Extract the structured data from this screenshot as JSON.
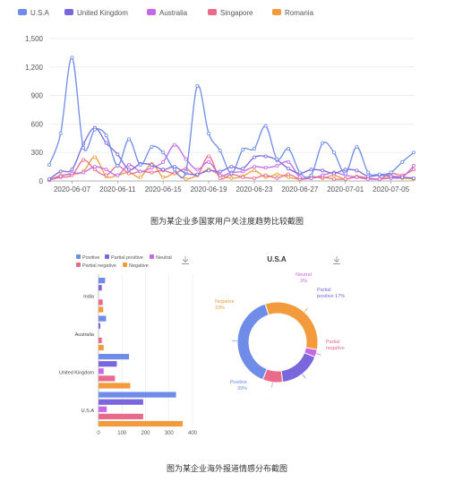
{
  "caption_top": "图为某企业多国家用户关注度趋势比较截图",
  "caption_bottom": "图为某企业海外报道情感分布截图",
  "colors": {
    "U.S.A": "#6e8ce8",
    "United Kingdom": "#7a66dd",
    "Australia": "#c667e6",
    "Singapore": "#ea6a8c",
    "Romania": "#f39b3c",
    "Positive": "#6e8ce8",
    "Partial positive": "#7a66dd",
    "Neutral": "#c667e6",
    "Partial negative": "#ea6a8c",
    "Negative": "#f39b3c",
    "grid": "#e6e6e6",
    "axis": "#999999",
    "download_icon": "#9a9a9a"
  },
  "chart_data": [
    {
      "type": "line",
      "title": "",
      "legend_position": "top-left",
      "legend": [
        "U.S.A",
        "United Kingdom",
        "Australia",
        "Singapore",
        "Romania"
      ],
      "x_ticks": [
        "2020-06-07",
        "2020-06-11",
        "2020-06-15",
        "2020-06-19",
        "2020-06-23",
        "2020-06-27",
        "2020-07-01",
        "2020-07-05"
      ],
      "x_start": "2020-06-05",
      "x_end": "2020-07-07",
      "y_ticks": [
        "0",
        "300",
        "600",
        "900",
        "1,200",
        "1,500"
      ],
      "ylim": [
        0,
        1500
      ],
      "grid": true,
      "series": [
        {
          "name": "U.S.A",
          "points": [
            [
              "2020-06-05",
              170
            ],
            [
              "2020-06-06",
              500
            ],
            [
              "2020-06-07",
              1300
            ],
            [
              "2020-06-08",
              350
            ],
            [
              "2020-06-09",
              540
            ],
            [
              "2020-06-10",
              480
            ],
            [
              "2020-06-11",
              160
            ],
            [
              "2020-06-12",
              440
            ],
            [
              "2020-06-13",
              170
            ],
            [
              "2020-06-14",
              360
            ],
            [
              "2020-06-15",
              300
            ],
            [
              "2020-06-16",
              120
            ],
            [
              "2020-06-17",
              100
            ],
            [
              "2020-06-18",
              1000
            ],
            [
              "2020-06-19",
              500
            ],
            [
              "2020-06-20",
              320
            ],
            [
              "2020-06-21",
              80
            ],
            [
              "2020-06-22",
              330
            ],
            [
              "2020-06-23",
              340
            ],
            [
              "2020-06-24",
              580
            ],
            [
              "2020-06-25",
              230
            ],
            [
              "2020-06-26",
              340
            ],
            [
              "2020-06-27",
              90
            ],
            [
              "2020-06-28",
              60
            ],
            [
              "2020-06-29",
              400
            ],
            [
              "2020-06-30",
              300
            ],
            [
              "2020-07-01",
              80
            ],
            [
              "2020-07-02",
              360
            ],
            [
              "2020-07-03",
              90
            ],
            [
              "2020-07-04",
              70
            ],
            [
              "2020-07-05",
              90
            ],
            [
              "2020-07-06",
              200
            ],
            [
              "2020-07-07",
              300
            ]
          ]
        },
        {
          "name": "United Kingdom",
          "points": [
            [
              "2020-06-05",
              20
            ],
            [
              "2020-06-06",
              100
            ],
            [
              "2020-06-07",
              120
            ],
            [
              "2020-06-08",
              390
            ],
            [
              "2020-06-09",
              560
            ],
            [
              "2020-06-10",
              400
            ],
            [
              "2020-06-11",
              280
            ],
            [
              "2020-06-12",
              120
            ],
            [
              "2020-06-13",
              180
            ],
            [
              "2020-06-14",
              170
            ],
            [
              "2020-06-15",
              120
            ],
            [
              "2020-06-16",
              150
            ],
            [
              "2020-06-17",
              80
            ],
            [
              "2020-06-18",
              70
            ],
            [
              "2020-06-19",
              110
            ],
            [
              "2020-06-20",
              100
            ],
            [
              "2020-06-21",
              150
            ],
            [
              "2020-06-22",
              130
            ],
            [
              "2020-06-23",
              250
            ],
            [
              "2020-06-24",
              260
            ],
            [
              "2020-06-25",
              220
            ],
            [
              "2020-06-26",
              130
            ],
            [
              "2020-06-27",
              80
            ],
            [
              "2020-06-28",
              120
            ],
            [
              "2020-06-29",
              110
            ],
            [
              "2020-06-30",
              80
            ],
            [
              "2020-07-01",
              120
            ],
            [
              "2020-07-02",
              110
            ],
            [
              "2020-07-03",
              50
            ],
            [
              "2020-07-04",
              60
            ],
            [
              "2020-07-05",
              50
            ],
            [
              "2020-07-06",
              40
            ],
            [
              "2020-07-07",
              30
            ]
          ]
        },
        {
          "name": "Australia",
          "points": [
            [
              "2020-06-05",
              10
            ],
            [
              "2020-06-06",
              50
            ],
            [
              "2020-06-07",
              80
            ],
            [
              "2020-06-08",
              90
            ],
            [
              "2020-06-09",
              150
            ],
            [
              "2020-06-10",
              120
            ],
            [
              "2020-06-11",
              60
            ],
            [
              "2020-06-12",
              170
            ],
            [
              "2020-06-13",
              100
            ],
            [
              "2020-06-14",
              140
            ],
            [
              "2020-06-15",
              200
            ],
            [
              "2020-06-16",
              380
            ],
            [
              "2020-06-17",
              230
            ],
            [
              "2020-06-18",
              120
            ],
            [
              "2020-06-19",
              200
            ],
            [
              "2020-06-20",
              60
            ],
            [
              "2020-06-21",
              90
            ],
            [
              "2020-06-22",
              100
            ],
            [
              "2020-06-23",
              150
            ],
            [
              "2020-06-24",
              140
            ],
            [
              "2020-06-25",
              160
            ],
            [
              "2020-06-26",
              200
            ],
            [
              "2020-06-27",
              40
            ],
            [
              "2020-06-28",
              30
            ],
            [
              "2020-06-29",
              60
            ],
            [
              "2020-06-30",
              90
            ],
            [
              "2020-07-01",
              60
            ],
            [
              "2020-07-02",
              40
            ],
            [
              "2020-07-03",
              20
            ],
            [
              "2020-07-04",
              20
            ],
            [
              "2020-07-05",
              30
            ],
            [
              "2020-07-06",
              40
            ],
            [
              "2020-07-07",
              160
            ]
          ]
        },
        {
          "name": "Singapore",
          "points": [
            [
              "2020-06-05",
              10
            ],
            [
              "2020-06-06",
              40
            ],
            [
              "2020-06-07",
              60
            ],
            [
              "2020-06-08",
              220
            ],
            [
              "2020-06-09",
              120
            ],
            [
              "2020-06-10",
              60
            ],
            [
              "2020-06-11",
              160
            ],
            [
              "2020-06-12",
              80
            ],
            [
              "2020-06-13",
              100
            ],
            [
              "2020-06-14",
              90
            ],
            [
              "2020-06-15",
              110
            ],
            [
              "2020-06-16",
              80
            ],
            [
              "2020-06-17",
              130
            ],
            [
              "2020-06-18",
              60
            ],
            [
              "2020-06-19",
              260
            ],
            [
              "2020-06-20",
              30
            ],
            [
              "2020-06-21",
              70
            ],
            [
              "2020-06-22",
              40
            ],
            [
              "2020-06-23",
              30
            ],
            [
              "2020-06-24",
              60
            ],
            [
              "2020-06-25",
              30
            ],
            [
              "2020-06-26",
              70
            ],
            [
              "2020-06-27",
              20
            ],
            [
              "2020-06-28",
              30
            ],
            [
              "2020-06-29",
              40
            ],
            [
              "2020-06-30",
              20
            ],
            [
              "2020-07-01",
              20
            ],
            [
              "2020-07-02",
              40
            ],
            [
              "2020-07-03",
              30
            ],
            [
              "2020-07-04",
              20
            ],
            [
              "2020-07-05",
              80
            ],
            [
              "2020-07-06",
              60
            ],
            [
              "2020-07-07",
              120
            ]
          ]
        },
        {
          "name": "Romania",
          "points": [
            [
              "2020-06-05",
              10
            ],
            [
              "2020-06-06",
              60
            ],
            [
              "2020-06-07",
              70
            ],
            [
              "2020-06-08",
              100
            ],
            [
              "2020-06-09",
              250
            ],
            [
              "2020-06-10",
              50
            ],
            [
              "2020-06-11",
              60
            ],
            [
              "2020-06-12",
              90
            ],
            [
              "2020-06-13",
              40
            ],
            [
              "2020-06-14",
              180
            ],
            [
              "2020-06-15",
              40
            ],
            [
              "2020-06-16",
              80
            ],
            [
              "2020-06-17",
              20
            ],
            [
              "2020-06-18",
              60
            ],
            [
              "2020-06-19",
              120
            ],
            [
              "2020-06-20",
              60
            ],
            [
              "2020-06-21",
              30
            ],
            [
              "2020-06-22",
              50
            ],
            [
              "2020-06-23",
              110
            ],
            [
              "2020-06-24",
              40
            ],
            [
              "2020-06-25",
              70
            ],
            [
              "2020-06-26",
              40
            ],
            [
              "2020-06-27",
              20
            ],
            [
              "2020-06-28",
              50
            ],
            [
              "2020-06-29",
              30
            ],
            [
              "2020-06-30",
              60
            ],
            [
              "2020-07-01",
              20
            ],
            [
              "2020-07-02",
              50
            ],
            [
              "2020-07-03",
              30
            ],
            [
              "2020-07-04",
              20
            ],
            [
              "2020-07-05",
              40
            ],
            [
              "2020-07-06",
              30
            ],
            [
              "2020-07-07",
              20
            ]
          ]
        }
      ]
    },
    {
      "type": "bar",
      "orientation": "horizontal",
      "title": "",
      "legend": [
        "Positive",
        "Partial positive",
        "Neutral",
        "Partial negative",
        "Negative"
      ],
      "categories": [
        "India",
        "Australia",
        "United Kingdom",
        "U.S.A"
      ],
      "category_labels": [
        "India",
        "Australia",
        "United Kingdom",
        "U.S.A"
      ],
      "x_ticks": [
        "0",
        "100",
        "200",
        "300",
        "400"
      ],
      "xlim": [
        0,
        400
      ],
      "series": [
        {
          "name": "Positive",
          "values": [
            28,
            32,
            130,
            330
          ]
        },
        {
          "name": "Partial positive",
          "values": [
            14,
            8,
            78,
            190
          ]
        },
        {
          "name": "Neutral",
          "values": [
            0,
            0,
            22,
            35
          ]
        },
        {
          "name": "Partial negative",
          "values": [
            18,
            14,
            70,
            190
          ]
        },
        {
          "name": "Negative",
          "values": [
            20,
            22,
            135,
            358
          ]
        }
      ]
    },
    {
      "type": "pie",
      "style": "donut",
      "title": "U.S.A",
      "slices": [
        {
          "label": "Positive",
          "value": 39,
          "display": "Positive\n39%"
        },
        {
          "label": "Negative",
          "value": 33,
          "display": "Negative\n33%"
        },
        {
          "label": "Neutral",
          "value": 3,
          "display": "Neutral\n3%"
        },
        {
          "label": "Partial positive",
          "value": 17,
          "display": "Partial\npositive 17%"
        },
        {
          "label": "Partial negative",
          "value": 8,
          "display": "Partial\nnegative"
        }
      ]
    }
  ]
}
